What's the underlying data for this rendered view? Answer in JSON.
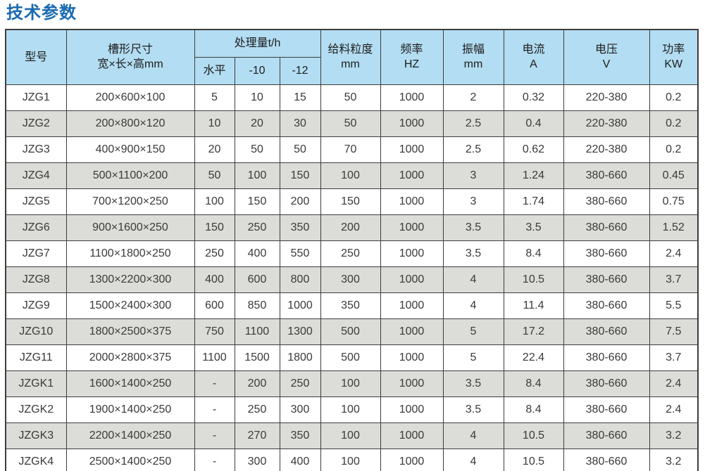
{
  "page_title": "技术参数",
  "colors": {
    "title_text": "#1a6ab2",
    "header_bg": "#b3ddf2",
    "row_alt_bg": "#dcdcd8",
    "border": "#3d3d3d"
  },
  "table": {
    "headers": {
      "model": "型号",
      "trough_size_line1": "槽形尺寸",
      "trough_size_line2": "宽×长×高mm",
      "capacity_group": "处理量t/h",
      "capacity_subcols": [
        "水平",
        "-10",
        "-12"
      ],
      "feed_size_line1": "给料粒度",
      "feed_size_line2": "mm",
      "frequency_line1": "频率",
      "frequency_line2": "HZ",
      "amplitude_line1": "振幅",
      "amplitude_line2": "mm",
      "current_line1": "电流",
      "current_line2": "A",
      "voltage_line1": "电压",
      "voltage_line2": "V",
      "power_line1": "功率",
      "power_line2": "KW"
    },
    "column_keys": [
      "model",
      "trough-size",
      "capacity-horizontal",
      "capacity-minus10",
      "capacity-minus12",
      "feed-size",
      "frequency",
      "amplitude",
      "current",
      "voltage",
      "power"
    ],
    "rows": [
      [
        "JZG1",
        "200×600×100",
        "5",
        "10",
        "15",
        "50",
        "1000",
        "2",
        "0.32",
        "220-380",
        "0.2"
      ],
      [
        "JZG2",
        "200×800×120",
        "10",
        "20",
        "30",
        "50",
        "1000",
        "2.5",
        "0.4",
        "220-380",
        "0.2"
      ],
      [
        "JZG3",
        "400×900×150",
        "20",
        "50",
        "50",
        "70",
        "1000",
        "2.5",
        "0.62",
        "220-380",
        "0.2"
      ],
      [
        "JZG4",
        "500×1100×200",
        "50",
        "100",
        "150",
        "100",
        "1000",
        "3",
        "1.24",
        "380-660",
        "0.45"
      ],
      [
        "JZG5",
        "700×1200×250",
        "100",
        "150",
        "200",
        "150",
        "1000",
        "3",
        "1.74",
        "380-660",
        "0.75"
      ],
      [
        "JZG6",
        "900×1600×250",
        "150",
        "250",
        "350",
        "200",
        "1000",
        "3.5",
        "3.5",
        "380-660",
        "1.52"
      ],
      [
        "JZG7",
        "1100×1800×250",
        "250",
        "400",
        "550",
        "250",
        "1000",
        "3.5",
        "8.4",
        "380-660",
        "2.4"
      ],
      [
        "JZG8",
        "1300×2200×300",
        "400",
        "600",
        "800",
        "300",
        "1000",
        "4",
        "10.5",
        "380-660",
        "3.7"
      ],
      [
        "JZG9",
        "1500×2400×300",
        "600",
        "850",
        "1000",
        "350",
        "1000",
        "4",
        "11.4",
        "380-660",
        "5.5"
      ],
      [
        "JZG10",
        "1800×2500×375",
        "750",
        "1100",
        "1300",
        "500",
        "1000",
        "5",
        "17.2",
        "380-660",
        "7.5"
      ],
      [
        "JZG11",
        "2000×2800×375",
        "1100",
        "1500",
        "1800",
        "500",
        "1000",
        "5",
        "22.4",
        "380-660",
        "3.7"
      ],
      [
        "JZGK1",
        "1600×1400×250",
        "-",
        "200",
        "250",
        "100",
        "1000",
        "3.5",
        "8.4",
        "380-660",
        "2.4"
      ],
      [
        "JZGK2",
        "1900×1400×250",
        "-",
        "250",
        "300",
        "100",
        "1000",
        "3.5",
        "8.4",
        "380-660",
        "2.4"
      ],
      [
        "JZGK3",
        "2200×1400×250",
        "-",
        "270",
        "350",
        "100",
        "1000",
        "4",
        "10.5",
        "380-660",
        "3.2"
      ],
      [
        "JZGK4",
        "2500×1400×250",
        "-",
        "300",
        "400",
        "100",
        "1000",
        "4",
        "10.5",
        "380-660",
        "3.2"
      ]
    ]
  }
}
